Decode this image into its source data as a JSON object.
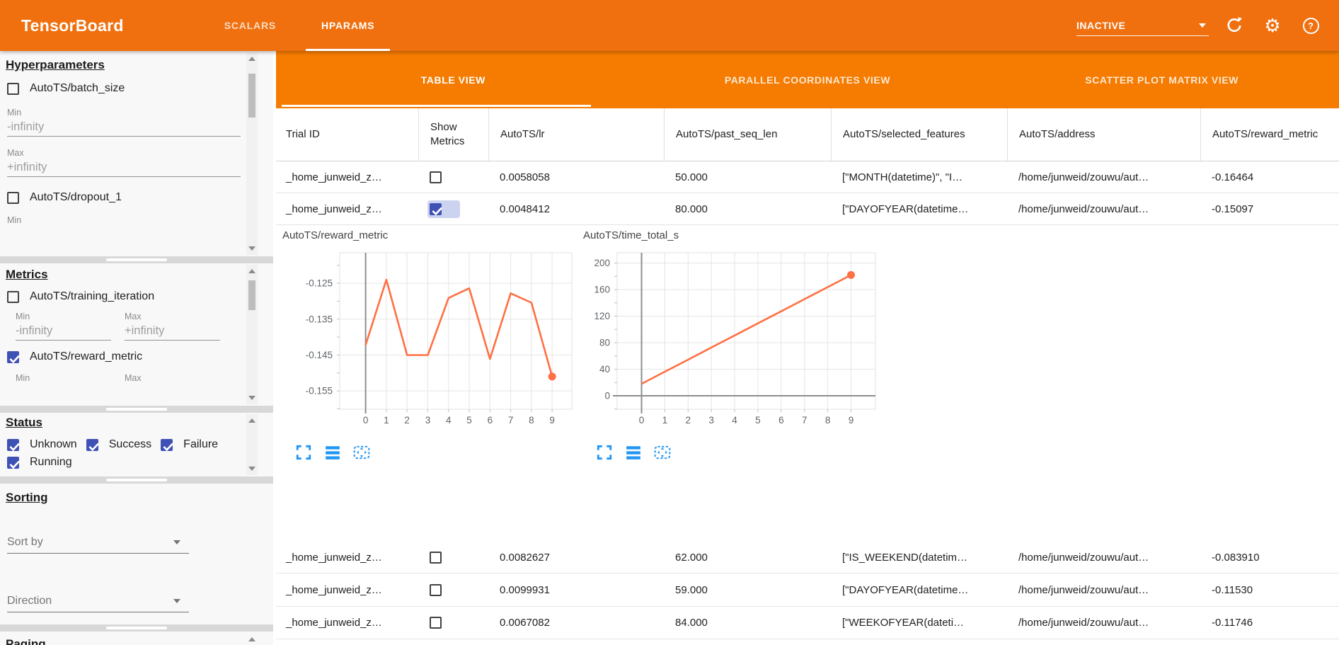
{
  "colors": {
    "appbar_orange": "#f0700f",
    "tabbar_orange": "#f57c00",
    "checkbox_indigo": "#3f51b5",
    "chart_line_orange": "#ff7043",
    "chart_icon_blue": "#2196f3"
  },
  "appbar": {
    "title": "TensorBoard",
    "tabs": [
      {
        "label": "SCALARS",
        "active": false
      },
      {
        "label": "HPARAMS",
        "active": true
      }
    ],
    "run_status": "INACTIVE",
    "icons": [
      "refresh-icon",
      "settings-icon",
      "help-icon"
    ]
  },
  "sidebar": {
    "hyperparameters": {
      "heading": "Hyperparameters",
      "batch_size": {
        "label": "AutoTS/batch_size",
        "checked": false,
        "min_label": "Min",
        "min_value": "-infinity",
        "max_label": "Max",
        "max_value": "+infinity"
      },
      "dropout_1": {
        "label": "AutoTS/dropout_1",
        "checked": false,
        "min_label": "Min"
      }
    },
    "metrics": {
      "heading": "Metrics",
      "training_iteration": {
        "label": "AutoTS/training_iteration",
        "checked": false,
        "min_label": "Min",
        "min_value": "-infinity",
        "max_label": "Max",
        "max_value": "+infinity"
      },
      "reward_metric": {
        "label": "AutoTS/reward_metric",
        "checked": true,
        "min_label": "Min",
        "max_label": "Max"
      }
    },
    "status": {
      "heading": "Status",
      "options": [
        {
          "label": "Unknown",
          "checked": true
        },
        {
          "label": "Success",
          "checked": true
        },
        {
          "label": "Failure",
          "checked": true
        },
        {
          "label": "Running",
          "checked": true
        }
      ]
    },
    "sorting": {
      "heading": "Sorting",
      "sort_by_label": "Sort by",
      "direction_label": "Direction"
    },
    "paging": {
      "heading": "Paging"
    }
  },
  "views": {
    "tabs": [
      {
        "label": "TABLE VIEW",
        "active": true
      },
      {
        "label": "PARALLEL COORDINATES VIEW",
        "active": false
      },
      {
        "label": "SCATTER PLOT MATRIX VIEW",
        "active": false
      }
    ]
  },
  "table": {
    "columns": [
      "Trial ID",
      "Show Metrics",
      "AutoTS/lr",
      "AutoTS/past_seq_len",
      "AutoTS/selected_features",
      "AutoTS/address",
      "AutoTS/reward_metric"
    ],
    "rows_top": [
      {
        "trial_id": "_home_junweid_z…",
        "show_metrics": false,
        "lr": "0.0058058",
        "past_seq_len": "50.000",
        "selected_features": "[\"MONTH(datetime)\", \"I…",
        "address": "/home/junweid/zouwu/aut…",
        "reward_metric": "-0.16464"
      },
      {
        "trial_id": "_home_junweid_z…",
        "show_metrics": true,
        "lr": "0.0048412",
        "past_seq_len": "80.000",
        "selected_features": "[\"DAYOFYEAR(datetime…",
        "address": "/home/junweid/zouwu/aut…",
        "reward_metric": "-0.15097"
      }
    ],
    "rows_bottom": [
      {
        "trial_id": "_home_junweid_z…",
        "show_metrics": false,
        "lr": "0.0082627",
        "past_seq_len": "62.000",
        "selected_features": "[\"IS_WEEKEND(datetim…",
        "address": "/home/junweid/zouwu/aut…",
        "reward_metric": "-0.083910"
      },
      {
        "trial_id": "_home_junweid_z…",
        "show_metrics": false,
        "lr": "0.0099931",
        "past_seq_len": "59.000",
        "selected_features": "[\"DAYOFYEAR(datetime…",
        "address": "/home/junweid/zouwu/aut…",
        "reward_metric": "-0.11530"
      },
      {
        "trial_id": "_home_junweid_z…",
        "show_metrics": false,
        "lr": "0.0067082",
        "past_seq_len": "84.000",
        "selected_features": "[\"WEEKOFYEAR(dateti…",
        "address": "/home/junweid/zouwu/aut…",
        "reward_metric": "-0.11746"
      }
    ]
  },
  "chart_data": [
    {
      "type": "line",
      "title": "AutoTS/reward_metric",
      "xlabel": "",
      "ylabel": "",
      "x": [
        0,
        1,
        2,
        3,
        4,
        5,
        6,
        7,
        8,
        9
      ],
      "values": [
        -0.1422,
        -0.124,
        -0.145,
        -0.145,
        -0.1291,
        -0.1264,
        -0.1461,
        -0.1278,
        -0.1304,
        -0.151
      ],
      "xticks": [
        0,
        1,
        2,
        3,
        4,
        5,
        6,
        7,
        8,
        9
      ],
      "yticks": [
        -0.125,
        -0.135,
        -0.145,
        -0.155
      ],
      "ytick_labels": [
        "-0.125",
        "-0.135",
        "-0.145",
        "-0.155"
      ],
      "xlim": [
        -1.25,
        9.95
      ],
      "ylim": [
        -0.1601,
        -0.1165
      ],
      "minor_step": 0.005,
      "grid": true,
      "legend": "none",
      "color": "#ff7043",
      "end_dot": true
    },
    {
      "type": "line",
      "title": "AutoTS/time_total_s",
      "xlabel": "",
      "ylabel": "",
      "x": [
        0,
        1,
        2,
        3,
        4,
        5,
        6,
        7,
        8,
        9
      ],
      "values": [
        18,
        36.2,
        54.4,
        72.7,
        90.9,
        109.1,
        127.3,
        145.6,
        163.8,
        182
      ],
      "xticks": [
        0,
        1,
        2,
        3,
        4,
        5,
        6,
        7,
        8,
        9
      ],
      "yticks": [
        0,
        40,
        80,
        120,
        160,
        200
      ],
      "ytick_labels": [
        "0",
        "40",
        "80",
        "120",
        "160",
        "200"
      ],
      "xlim": [
        -1.05,
        10.05
      ],
      "ylim": [
        -20.3,
        215.5
      ],
      "minor_step": 20,
      "grid": true,
      "legend": "none",
      "color": "#ff7043",
      "end_dot": true
    }
  ]
}
